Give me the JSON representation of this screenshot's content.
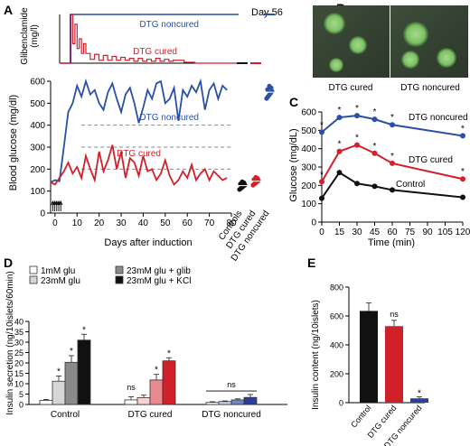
{
  "panels": {
    "A": "A",
    "B": "B",
    "C": "C",
    "D": "D",
    "E": "E"
  },
  "colors": {
    "blue": "#2a4fa8",
    "red": "#d0202a",
    "black": "#111111",
    "gray": "#8a8a8a",
    "lightgray": "#d6d6d6",
    "darkgray": "#6e6e6e",
    "darkblue": "#2a3f9a",
    "midblue": "#6f86c9",
    "lightblue": "#c7d2ef"
  },
  "chart_data": [
    {
      "id": "A_top",
      "type": "line",
      "ylabel": "Glibenclamide (mg/l)",
      "ylabel_lines": [
        "Glibenclamide",
        "(mg/l)"
      ],
      "ylim": [
        0,
        5
      ],
      "xlim": [
        0,
        80
      ],
      "series": [
        {
          "name": "DTG noncured",
          "x": [
            -2,
            3,
            3,
            80
          ],
          "y": [
            0,
            0,
            5,
            5
          ]
        },
        {
          "name": "DTG cured",
          "x": [
            -2,
            3,
            3,
            4,
            4,
            5,
            5,
            6,
            6,
            7,
            7,
            8,
            8,
            9,
            9,
            10,
            10,
            12,
            12,
            14,
            14,
            16,
            16,
            18,
            18,
            20,
            20,
            22,
            22,
            24,
            24,
            26,
            26,
            28,
            28,
            30,
            30,
            32,
            32,
            34,
            34,
            36,
            36,
            38,
            38,
            40,
            40,
            42,
            42,
            44,
            44,
            46,
            46,
            48,
            48,
            50,
            50,
            55,
            55,
            60,
            60,
            70,
            70,
            80
          ],
          "y": [
            0,
            0,
            5,
            5,
            2,
            2,
            4,
            4,
            1.5,
            1.5,
            2.5,
            2.5,
            1,
            1,
            2,
            2,
            1,
            1,
            0.4,
            0.4,
            0.9,
            0.9,
            0.3,
            0.3,
            0.8,
            0.8,
            0.3,
            0.3,
            0.7,
            0.7,
            0.3,
            0.3,
            0.6,
            0.6,
            0.3,
            0.3,
            0.5,
            0.5,
            0.2,
            0.2,
            0.5,
            0.5,
            0.2,
            0.2,
            0.4,
            0.4,
            0.2,
            0.2,
            0.5,
            0.5,
            0.2,
            0.2,
            0.4,
            0.4,
            0.2,
            0.2,
            0.3,
            0.3,
            0.1,
            0.1,
            0,
            0,
            0,
            0
          ]
        }
      ],
      "labels": {
        "noncured": "DTG noncured",
        "cured": "DTG cured",
        "day56": "Day 56"
      }
    },
    {
      "id": "A_bottom",
      "type": "line",
      "xlabel": "Days after induction",
      "ylabel": "Blood glucose (mg/dl)",
      "xlim": [
        -2,
        80
      ],
      "ylim": [
        0,
        600
      ],
      "xticks": [
        0,
        10,
        20,
        30,
        40,
        50,
        60,
        70,
        80
      ],
      "yticks": [
        0,
        100,
        200,
        300,
        400,
        500,
        600
      ],
      "ref_lines": [
        400,
        300,
        200
      ],
      "series": [
        {
          "name": "DTG noncured",
          "x": [
            -2,
            0,
            2,
            4,
            6,
            8,
            10,
            12,
            14,
            16,
            18,
            20,
            22,
            24,
            26,
            28,
            30,
            32,
            34,
            36,
            38,
            40,
            42,
            44,
            46,
            48,
            50,
            52,
            54,
            56,
            58,
            60,
            62,
            64,
            66,
            68,
            70,
            72,
            74,
            76,
            78
          ],
          "y": [
            140,
            150,
            145,
            300,
            460,
            500,
            580,
            530,
            600,
            540,
            560,
            500,
            470,
            550,
            590,
            520,
            460,
            540,
            570,
            500,
            410,
            480,
            560,
            520,
            590,
            600,
            500,
            520,
            570,
            420,
            560,
            530,
            580,
            550,
            600,
            470,
            560,
            590,
            520,
            580,
            560
          ]
        },
        {
          "name": "DTG cured",
          "x": [
            -2,
            0,
            2,
            4,
            6,
            8,
            10,
            12,
            14,
            16,
            18,
            20,
            22,
            24,
            26,
            28,
            30,
            32,
            34,
            36,
            38,
            40,
            42,
            44,
            46,
            48,
            50,
            52,
            54,
            56,
            58,
            60,
            62,
            64,
            66,
            68,
            70,
            72,
            74,
            76,
            78
          ],
          "y": [
            140,
            130,
            160,
            190,
            230,
            180,
            210,
            160,
            260,
            200,
            150,
            280,
            190,
            240,
            310,
            200,
            280,
            160,
            250,
            230,
            170,
            260,
            190,
            200,
            150,
            180,
            240,
            170,
            130,
            150,
            190,
            160,
            220,
            150,
            180,
            200,
            150,
            190,
            170,
            150,
            160
          ]
        }
      ],
      "labels": {
        "noncured": "DTG noncured",
        "cured": "DTG cured"
      }
    },
    {
      "id": "A_day56",
      "type": "scatter",
      "categories": [
        "Controls",
        "DTG cured",
        "DTG noncured"
      ],
      "means": [
        125,
        145,
        550
      ],
      "glib_means": [
        0,
        0,
        5
      ]
    },
    {
      "id": "C",
      "type": "line",
      "xlabel": "Time (min)",
      "ylabel": "Glucose (mg/dL)",
      "xlim": [
        0,
        120
      ],
      "ylim": [
        0,
        600
      ],
      "xticks": [
        0,
        15,
        30,
        45,
        60,
        75,
        90,
        105,
        120
      ],
      "yticks": [
        0,
        100,
        200,
        300,
        400,
        500,
        600
      ],
      "series": [
        {
          "name": "DTG noncured",
          "x": [
            0,
            15,
            30,
            45,
            60,
            120
          ],
          "y": [
            490,
            570,
            580,
            560,
            530,
            470
          ]
        },
        {
          "name": "DTG cured",
          "x": [
            0,
            15,
            30,
            45,
            60,
            120
          ],
          "y": [
            220,
            385,
            420,
            375,
            320,
            235
          ]
        },
        {
          "name": "Control",
          "x": [
            0,
            15,
            30,
            45,
            60,
            120
          ],
          "y": [
            130,
            270,
            210,
            195,
            175,
            135
          ]
        }
      ],
      "asterisk": "*",
      "labels": {
        "noncured": "DTG noncured",
        "cured": "DTG cured",
        "control": "Control"
      }
    },
    {
      "id": "D",
      "type": "bar",
      "ylabel": "Insulin secretion (ng/10islets/60min)",
      "ylim": [
        0,
        40
      ],
      "yticks": [
        0,
        5,
        10,
        15,
        20,
        25,
        30,
        35,
        40
      ],
      "groups": [
        "Control",
        "DTG cured",
        "DTG noncured"
      ],
      "legend": [
        "1mM glu",
        "23mM glu",
        "23mM glu + glib",
        "23mM glu + KCl"
      ],
      "values": [
        [
          2,
          11.2,
          20.3,
          31
        ],
        [
          2.2,
          3.3,
          11.8,
          21
        ],
        [
          1,
          1.4,
          2.2,
          3.4
        ]
      ],
      "errors": [
        [
          0.4,
          2.5,
          3.2,
          2.8
        ],
        [
          1.5,
          1.2,
          2.7,
          1.5
        ],
        [
          0.3,
          0.3,
          0.5,
          1.4
        ]
      ],
      "annotations": {
        "star": "*",
        "ns": "ns"
      }
    },
    {
      "id": "E",
      "type": "bar",
      "ylabel": "Insulin content (ng/10islets)",
      "ylim": [
        0,
        800
      ],
      "yticks": [
        0,
        200,
        400,
        600,
        800
      ],
      "categories": [
        "Control",
        "DTG cured",
        "DTG noncured"
      ],
      "values": [
        635,
        530,
        30
      ],
      "errors": [
        55,
        40,
        10
      ],
      "annotations": {
        "ns": "ns",
        "star": "*"
      }
    }
  ],
  "panel_b": {
    "left_label": "DTG cured",
    "right_label": "DTG noncured"
  }
}
